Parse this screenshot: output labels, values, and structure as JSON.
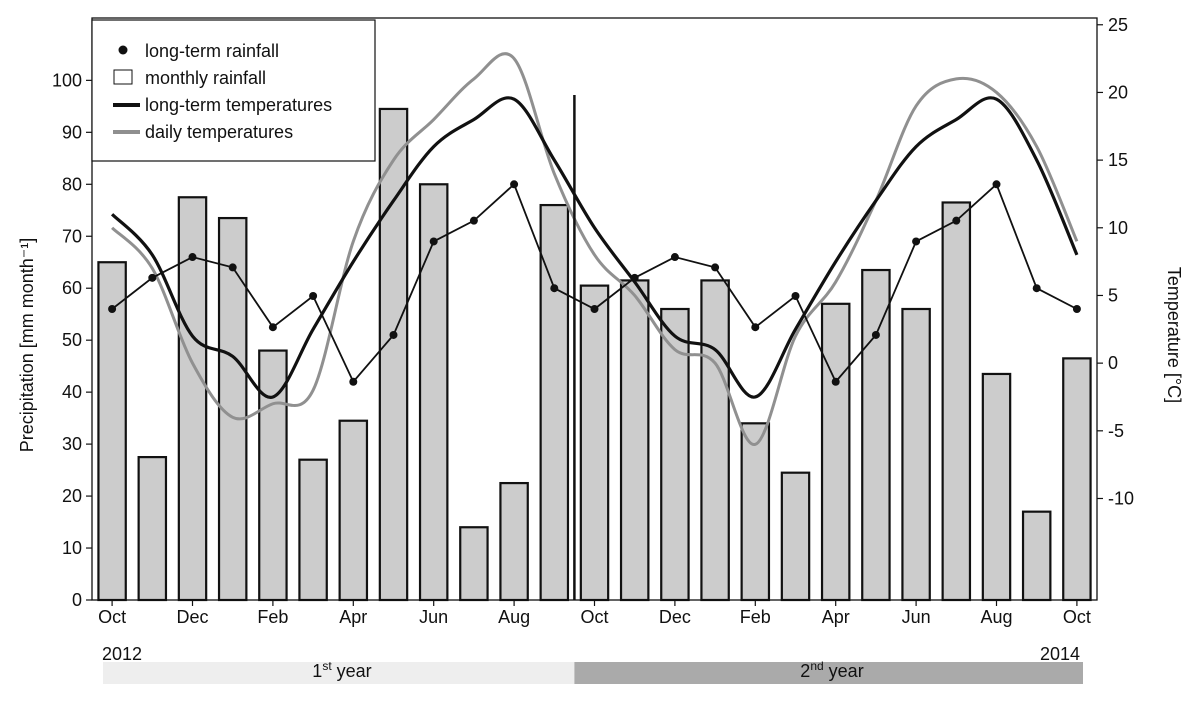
{
  "chart_data": {
    "type": "bar",
    "title": "",
    "y_left_label": "Precipitation [mm month⁻¹]",
    "y_right_label": "Temperature [°C]",
    "y_left_ticks": [
      "0",
      "10",
      "20",
      "30",
      "40",
      "50",
      "60",
      "70",
      "80",
      "90",
      "100"
    ],
    "y_right_ticks": [
      "-10",
      "-5",
      "0",
      "5",
      "10",
      "15",
      "20",
      "25"
    ],
    "y_left_lim": [
      0,
      112
    ],
    "y_right_lim": [
      -17.5,
      25.5
    ],
    "x_tick_labels": [
      "Oct",
      "Dec",
      "Feb",
      "Apr",
      "Jun",
      "Aug",
      "Oct",
      "Dec",
      "Feb",
      "Apr",
      "Jun",
      "Aug",
      "Oct"
    ],
    "year_labels": [
      "2012",
      "2014"
    ],
    "periods": [
      {
        "label_base": "1",
        "label_sup": "st",
        "label_rest": " year",
        "color": "#eeeeee"
      },
      {
        "label_base": "2",
        "label_sup": "nd",
        "label_rest": " year",
        "color": "#aaaaaa"
      }
    ],
    "legend": {
      "position": "top-left",
      "items": [
        {
          "label": "long-term rainfall",
          "symbol": "dot"
        },
        {
          "label": "monthly rainfall",
          "symbol": "box"
        },
        {
          "label": "long-term temperatures",
          "symbol": "line-black"
        },
        {
          "label": "daily temperatures",
          "symbol": "line-gray"
        }
      ]
    },
    "months": [
      "Oct 2012",
      "Nov 2012",
      "Dec 2012",
      "Jan 2013",
      "Feb 2013",
      "Mar 2013",
      "Apr 2013",
      "May 2013",
      "Jun 2013",
      "Jul 2013",
      "Aug 2013",
      "Sep 2013",
      "Oct 2013",
      "Nov 2013",
      "Dec 2013",
      "Jan 2014",
      "Feb 2014",
      "Mar 2014",
      "Apr 2014",
      "May 2014",
      "Jun 2014",
      "Jul 2014",
      "Aug 2014",
      "Sep 2014",
      "Oct 2014"
    ],
    "series": [
      {
        "name": "monthly rainfall",
        "type": "bar",
        "axis": "left",
        "values": [
          65,
          27.5,
          77.5,
          73.5,
          48,
          27,
          34.5,
          94.5,
          80,
          14,
          22.5,
          76,
          60.5,
          61.5,
          56,
          61.5,
          34,
          24.5,
          57,
          63.5,
          56,
          76.5,
          43.5,
          17,
          46.5
        ]
      },
      {
        "name": "long-term rainfall",
        "type": "line-dot",
        "axis": "left",
        "values": [
          56,
          62,
          66,
          64,
          52.5,
          58.5,
          42,
          51,
          69,
          73,
          80,
          60,
          56,
          62,
          66,
          64,
          52.5,
          58.5,
          42,
          51,
          69,
          73,
          80,
          60,
          56
        ]
      },
      {
        "name": "long-term temperatures",
        "type": "line",
        "axis": "right",
        "color": "#111111",
        "values": [
          11,
          8,
          2,
          0.5,
          -2.5,
          2.5,
          7.5,
          12,
          16,
          18,
          19.5,
          15,
          10,
          6,
          2,
          1,
          -2.5,
          2.5,
          7.5,
          12,
          16,
          18,
          19.5,
          15,
          8
        ]
      },
      {
        "name": "daily temperatures",
        "type": "line",
        "axis": "right",
        "color": "#909090",
        "values": [
          10,
          7,
          0,
          -4,
          -3,
          -2,
          9,
          15,
          18,
          21,
          22.5,
          14,
          8,
          5,
          1,
          0,
          -6,
          2,
          6,
          12,
          19,
          21,
          20,
          16,
          9
        ]
      }
    ]
  }
}
